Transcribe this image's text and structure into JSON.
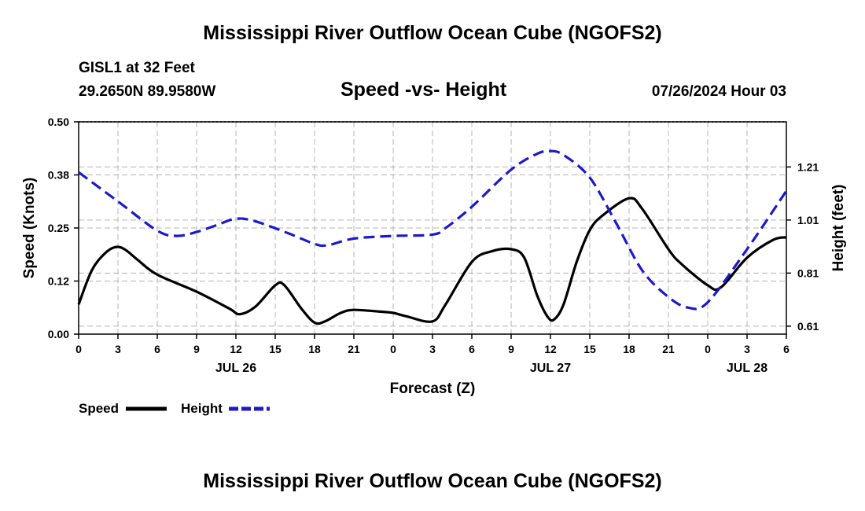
{
  "header": {
    "title": "Mississippi River Outflow Ocean Cube (NGOFS2)",
    "station": "GISL1 at 32 Feet",
    "coords": "29.2650N  89.9580W",
    "subtitle": "Speed -vs- Height",
    "datetime": "07/26/2024 Hour 03"
  },
  "footer": {
    "title": "Mississippi River Outflow Ocean Cube (NGOFS2)"
  },
  "legend": {
    "speed_label": "Speed",
    "height_label": "Height"
  },
  "colors": {
    "speed": "#000000",
    "height": "#1a1acc",
    "grid": "#b4b4b4"
  },
  "chart_data": {
    "type": "line",
    "xlabel": "Forecast (Z)",
    "ylabel_left": "Speed (Knots)",
    "ylabel_right": "Height (feet)",
    "x_range": [
      0,
      54
    ],
    "x_ticks": [
      {
        "x": 0,
        "label": "0"
      },
      {
        "x": 3,
        "label": "3"
      },
      {
        "x": 6,
        "label": "6"
      },
      {
        "x": 9,
        "label": "9"
      },
      {
        "x": 12,
        "label": "12"
      },
      {
        "x": 15,
        "label": "15"
      },
      {
        "x": 18,
        "label": "18"
      },
      {
        "x": 21,
        "label": "21"
      },
      {
        "x": 24,
        "label": "0"
      },
      {
        "x": 27,
        "label": "3"
      },
      {
        "x": 30,
        "label": "6"
      },
      {
        "x": 33,
        "label": "9"
      },
      {
        "x": 36,
        "label": "12"
      },
      {
        "x": 39,
        "label": "15"
      },
      {
        "x": 42,
        "label": "18"
      },
      {
        "x": 45,
        "label": "21"
      },
      {
        "x": 48,
        "label": "0"
      },
      {
        "x": 51,
        "label": "3"
      },
      {
        "x": 54,
        "label": "6"
      }
    ],
    "day_labels": [
      {
        "x": 12,
        "label": "JUL 26"
      },
      {
        "x": 36,
        "label": "JUL 27"
      },
      {
        "x": 51,
        "label": "JUL 28"
      }
    ],
    "y_left_range": [
      0,
      0.5
    ],
    "y_left_ticks": [
      {
        "v": 0.0,
        "label": "0.00"
      },
      {
        "v": 0.125,
        "label": "0.12"
      },
      {
        "v": 0.25,
        "label": "0.25"
      },
      {
        "v": 0.375,
        "label": "0.38"
      },
      {
        "v": 0.5,
        "label": "0.50"
      }
    ],
    "y_right_range": [
      0.58,
      1.38
    ],
    "y_right_ticks": [
      {
        "v": 0.61,
        "label": "0.61"
      },
      {
        "v": 0.81,
        "label": "0.81"
      },
      {
        "v": 1.01,
        "label": "1.01"
      },
      {
        "v": 1.21,
        "label": "1.21"
      }
    ],
    "series": [
      {
        "name": "Speed",
        "axis": "left",
        "style": "solid",
        "x": [
          0,
          1,
          2,
          2.8,
          3.5,
          4.5,
          6,
          9,
          11.5,
          12.3,
          13.5,
          15,
          15.7,
          17,
          18,
          18.8,
          20,
          21,
          23,
          24,
          25,
          27,
          28,
          30,
          31.5,
          33,
          34,
          35,
          35.8,
          36.3,
          37,
          38,
          39,
          40,
          42,
          43,
          45,
          46,
          48,
          49,
          51,
          53,
          54
        ],
        "values": [
          0.07,
          0.15,
          0.19,
          0.205,
          0.2,
          0.175,
          0.14,
          0.1,
          0.06,
          0.047,
          0.065,
          0.115,
          0.115,
          0.06,
          0.027,
          0.03,
          0.05,
          0.057,
          0.053,
          0.05,
          0.042,
          0.03,
          0.07,
          0.17,
          0.195,
          0.2,
          0.18,
          0.09,
          0.04,
          0.035,
          0.07,
          0.17,
          0.245,
          0.28,
          0.32,
          0.295,
          0.2,
          0.165,
          0.115,
          0.11,
          0.18,
          0.222,
          0.228
        ]
      },
      {
        "name": "Height",
        "axis": "right",
        "style": "dashed",
        "x": [
          0,
          3,
          6,
          7.5,
          9,
          10.5,
          12,
          13.5,
          16,
          18,
          19,
          21,
          24,
          27,
          28,
          30,
          33,
          35,
          36,
          37,
          39,
          41,
          43,
          45,
          46.5,
          48,
          51,
          54
        ],
        "values": [
          1.19,
          1.08,
          0.97,
          0.95,
          0.965,
          0.99,
          1.015,
          1.005,
          0.96,
          0.92,
          0.915,
          0.94,
          0.95,
          0.955,
          0.98,
          1.06,
          1.2,
          1.26,
          1.27,
          1.255,
          1.17,
          1.0,
          0.82,
          0.72,
          0.68,
          0.7,
          0.9,
          1.12
        ]
      }
    ]
  }
}
